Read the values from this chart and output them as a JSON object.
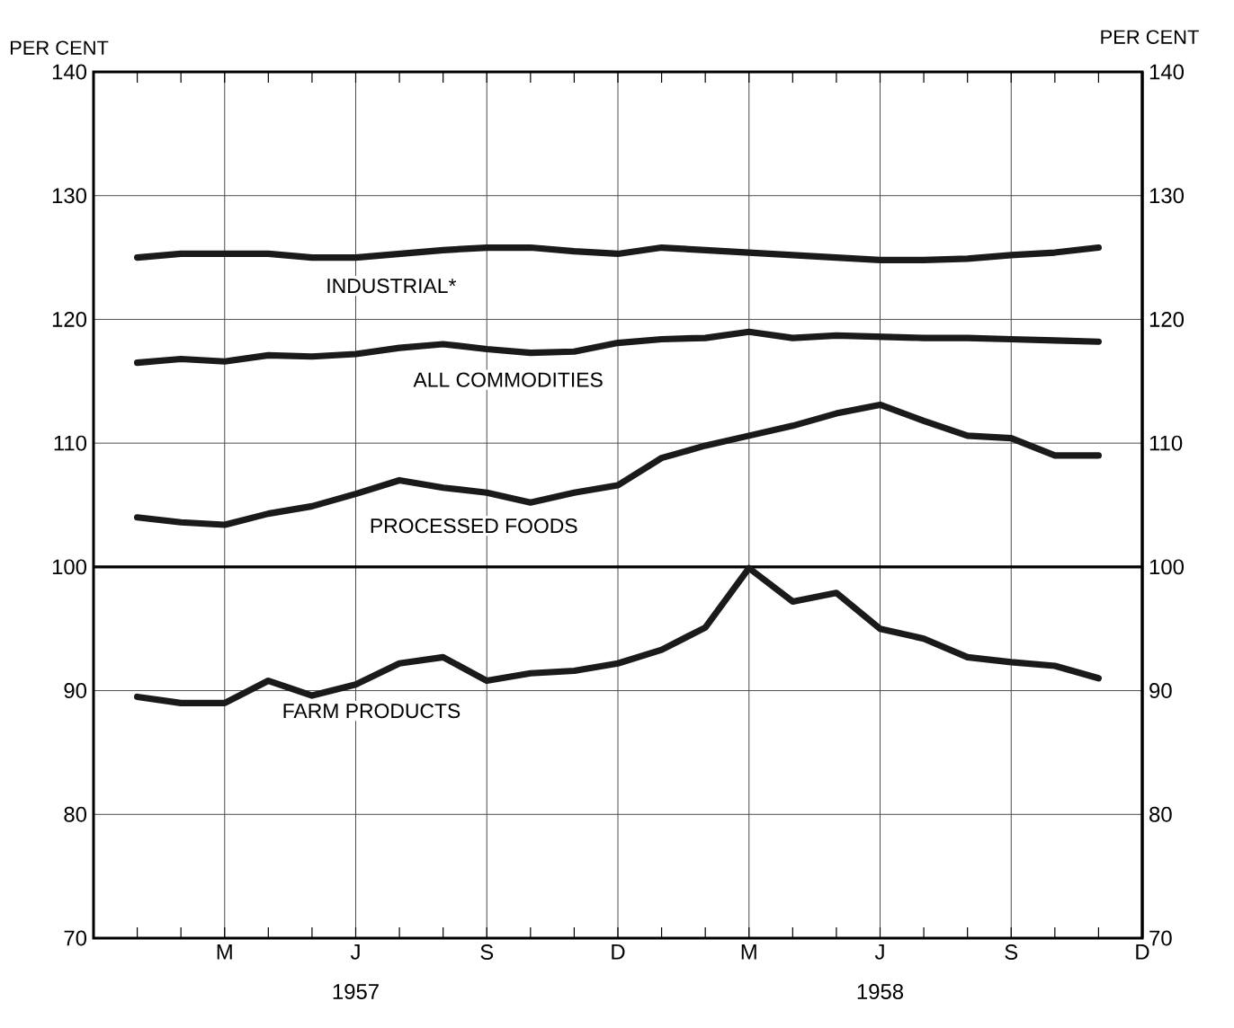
{
  "chart_data": {
    "type": "line",
    "ylabel": "PER CENT",
    "y2label": "PER CENT",
    "categories": [
      null,
      null,
      "M",
      null,
      null,
      "J",
      null,
      null,
      "S",
      null,
      null,
      "D",
      null,
      null,
      "M",
      null,
      null,
      "J",
      null,
      null,
      "S",
      null,
      null,
      "D"
    ],
    "ylim": [
      70,
      140
    ],
    "yticks": [
      70,
      80,
      90,
      100,
      110,
      120,
      130,
      140
    ],
    "y2lim": [
      70,
      140
    ],
    "y2ticks": [
      70,
      80,
      90,
      100,
      110,
      120,
      130,
      140
    ],
    "grid": true,
    "line_style": "solid",
    "marker": "none",
    "ref_lines": [
      {
        "axis": "y",
        "value": 100,
        "color": "#000000"
      }
    ],
    "annotations": [
      "1957",
      "1958"
    ],
    "series": [
      {
        "name": "INDUSTRIAL*",
        "color": "#1a1a1a",
        "values": [
          125,
          125.3,
          125.3,
          125.3,
          125,
          125,
          125.3,
          125.6,
          125.8,
          125.8,
          125.5,
          125.3,
          125.8,
          125.6,
          125.4,
          125.2,
          125,
          124.8,
          124.8,
          124.9,
          125.2,
          125.4,
          125.8,
          null
        ]
      },
      {
        "name": "ALL COMMODITIES",
        "color": "#1a1a1a",
        "values": [
          116.5,
          116.8,
          116.6,
          117.1,
          117,
          117.2,
          117.7,
          118,
          117.6,
          117.3,
          117.4,
          118.1,
          118.4,
          118.5,
          119,
          118.5,
          118.7,
          118.6,
          118.5,
          118.5,
          118.4,
          118.3,
          118.2,
          null
        ]
      },
      {
        "name": "PROCESSED FOODS",
        "color": "#1a1a1a",
        "values": [
          104,
          103.6,
          103.4,
          104.3,
          104.9,
          105.9,
          107,
          106.4,
          106,
          105.2,
          106,
          106.6,
          108.8,
          109.8,
          110.6,
          111.4,
          112.4,
          113.1,
          111.8,
          110.6,
          110.4,
          109,
          109,
          null
        ]
      },
      {
        "name": "FARM PRODUCTS",
        "color": "#1a1a1a",
        "values": [
          89.5,
          89,
          89,
          90.8,
          89.6,
          90.5,
          92.2,
          92.7,
          90.8,
          91.4,
          91.6,
          92.2,
          93.3,
          95.1,
          99.9,
          97.2,
          97.9,
          95,
          94.2,
          92.7,
          92.3,
          92,
          91,
          null
        ]
      }
    ]
  }
}
